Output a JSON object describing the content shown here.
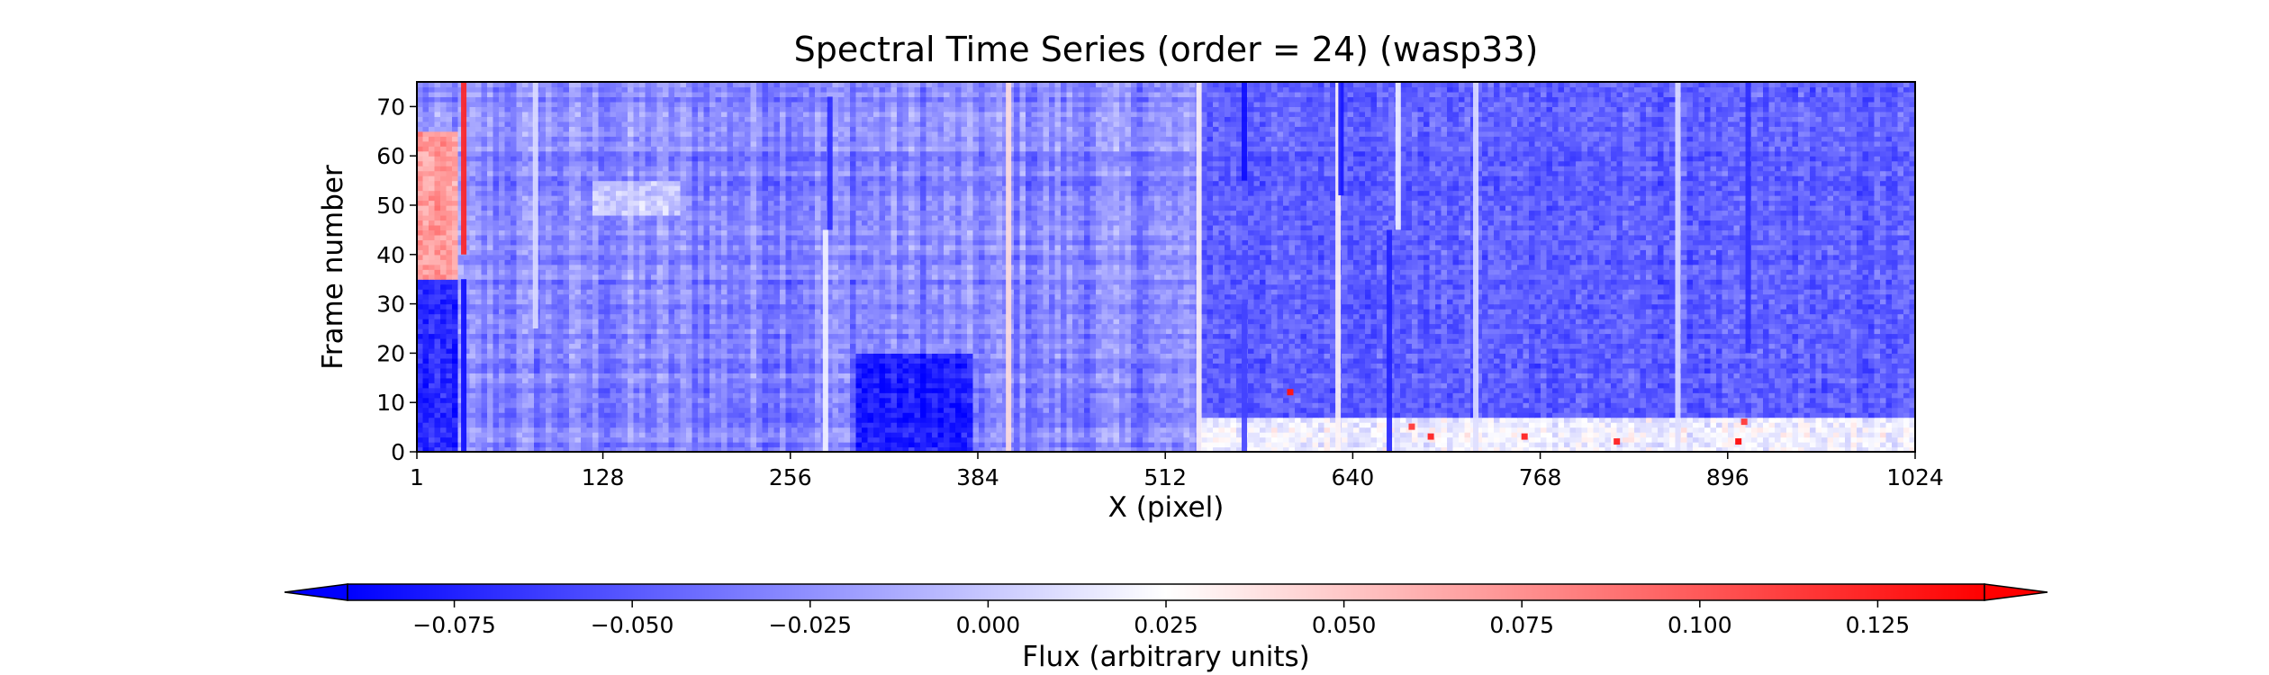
{
  "chart_data": {
    "type": "heatmap",
    "title": "Spectral Time Series (order = 24) (wasp33)",
    "xlabel": "X (pixel)",
    "ylabel": "Frame number",
    "xlim": [
      1,
      1024
    ],
    "ylim": [
      0,
      75
    ],
    "x_ticks": [
      1,
      128,
      256,
      384,
      512,
      640,
      768,
      896,
      1024
    ],
    "y_ticks": [
      0,
      10,
      20,
      30,
      40,
      50,
      60,
      70
    ],
    "colormap": "bwr",
    "colorbar": {
      "label": "Flux (arbitrary units)",
      "range": [
        -0.09,
        0.14
      ],
      "ticks": [
        -0.075,
        -0.05,
        -0.025,
        0.0,
        0.025,
        0.05,
        0.075,
        0.1,
        0.125
      ],
      "tick_labels": [
        "−0.075",
        "−0.050",
        "−0.025",
        "0.000",
        "0.025",
        "0.050",
        "0.075",
        "0.100",
        "0.125"
      ],
      "extend": "both",
      "orientation": "horizontal"
    },
    "background_flux": -0.03,
    "vertical_features": [
      {
        "x": 33,
        "flux": -0.085,
        "frames": [
          0,
          35
        ]
      },
      {
        "x": 33,
        "flux": 0.125,
        "frames": [
          40,
          75
        ]
      },
      {
        "x": 283,
        "flux": -0.07,
        "frames": [
          45,
          72
        ]
      },
      {
        "x": 280,
        "flux": 0.02,
        "frames": [
          0,
          45
        ]
      },
      {
        "x": 82,
        "flux": 0.01,
        "frames": [
          25,
          75
        ]
      },
      {
        "x": 405,
        "flux": 0.04,
        "frames": [
          0,
          75
        ]
      },
      {
        "x": 535,
        "flux": 0.03,
        "frames": [
          0,
          75
        ]
      },
      {
        "x": 566,
        "flux": -0.085,
        "frames": [
          55,
          75
        ]
      },
      {
        "x": 566,
        "flux": -0.06,
        "frames": [
          0,
          30
        ]
      },
      {
        "x": 630,
        "flux": 0.03,
        "frames": [
          0,
          75
        ]
      },
      {
        "x": 632,
        "flux": -0.08,
        "frames": [
          52,
          75
        ]
      },
      {
        "x": 665,
        "flux": -0.075,
        "frames": [
          0,
          45
        ]
      },
      {
        "x": 671,
        "flux": 0.02,
        "frames": [
          45,
          75
        ]
      },
      {
        "x": 724,
        "flux": 0.01,
        "frames": [
          0,
          75
        ]
      },
      {
        "x": 862,
        "flux": 0.01,
        "frames": [
          0,
          75
        ]
      },
      {
        "x": 910,
        "flux": -0.07,
        "frames": [
          20,
          75
        ]
      }
    ],
    "regions": [
      {
        "x": [
          1,
          30
        ],
        "frames": [
          35,
          65
        ],
        "flux": 0.08
      },
      {
        "x": [
          1,
          30
        ],
        "frames": [
          0,
          35
        ],
        "flux": -0.06
      },
      {
        "x": [
          300,
          380
        ],
        "frames": [
          0,
          20
        ],
        "flux": -0.065
      },
      {
        "x": [
          120,
          180
        ],
        "frames": [
          48,
          55
        ],
        "flux": 0.015
      },
      {
        "x": [
          535,
          1024
        ],
        "frames": [
          0,
          7
        ],
        "flux": 0.03
      },
      {
        "x": [
          535,
          1024
        ],
        "frames": [
          7,
          75
        ],
        "flux": -0.035
      }
    ],
    "hot_pixels": [
      {
        "x": 597,
        "frame": 12,
        "flux": 0.13
      },
      {
        "x": 680,
        "frame": 5,
        "flux": 0.11
      },
      {
        "x": 693,
        "frame": 3,
        "flux": 0.12
      },
      {
        "x": 757,
        "frame": 3,
        "flux": 0.12
      },
      {
        "x": 820,
        "frame": 2,
        "flux": 0.12
      },
      {
        "x": 903,
        "frame": 2,
        "flux": 0.13
      },
      {
        "x": 907,
        "frame": 6,
        "flux": 0.11
      }
    ]
  }
}
